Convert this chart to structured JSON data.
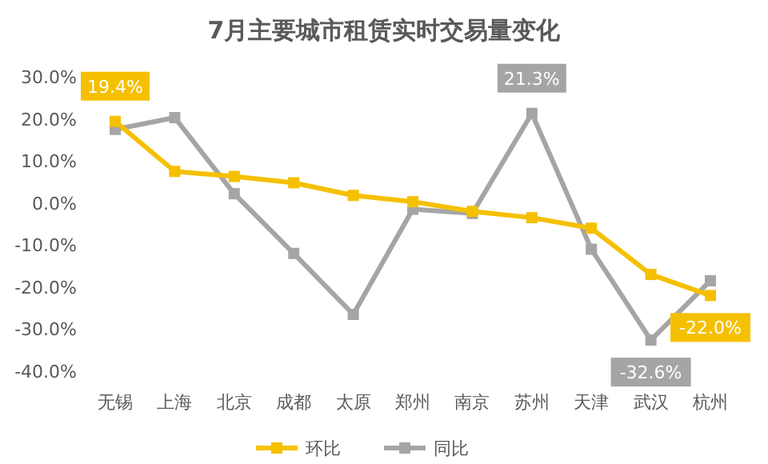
{
  "chart_data": {
    "type": "line",
    "title": "7月主要城市租赁实时交易量变化",
    "categories": [
      "无锡",
      "上海",
      "北京",
      "成都",
      "太原",
      "郑州",
      "南京",
      "苏州",
      "天津",
      "武汉",
      "杭州"
    ],
    "series": [
      {
        "name": "环比",
        "color": "#f5c000",
        "values": [
          19.4,
          7.5,
          6.3,
          4.8,
          1.8,
          0.3,
          -2,
          -3.5,
          -6,
          -17,
          -22.0
        ],
        "value_labels": [
          "19.4%",
          null,
          null,
          null,
          null,
          null,
          null,
          null,
          null,
          null,
          "-22.0%"
        ]
      },
      {
        "name": "同比",
        "color": "#a5a5a5",
        "values": [
          17.5,
          20.3,
          2.2,
          -12,
          -26.5,
          -1.5,
          -2.5,
          21.3,
          -11,
          -32.6,
          -18.5
        ],
        "value_labels": [
          null,
          null,
          null,
          null,
          null,
          null,
          null,
          "21.3%",
          null,
          "-32.6%",
          null
        ]
      }
    ],
    "ylim": [
      -40,
      30
    ],
    "yticks": [
      {
        "value": 30,
        "label": "30.0%"
      },
      {
        "value": 20,
        "label": "20.0%"
      },
      {
        "value": 10,
        "label": "10.0%"
      },
      {
        "value": 0,
        "label": "0.0%"
      },
      {
        "value": -10,
        "label": "-10.0%"
      },
      {
        "value": -20,
        "label": "-20.0%"
      },
      {
        "value": -30,
        "label": "-30.0%"
      },
      {
        "value": -40,
        "label": "-40.0%"
      }
    ],
    "grid": false,
    "legend": "bottom",
    "marker": "square",
    "line_style": "solid"
  }
}
